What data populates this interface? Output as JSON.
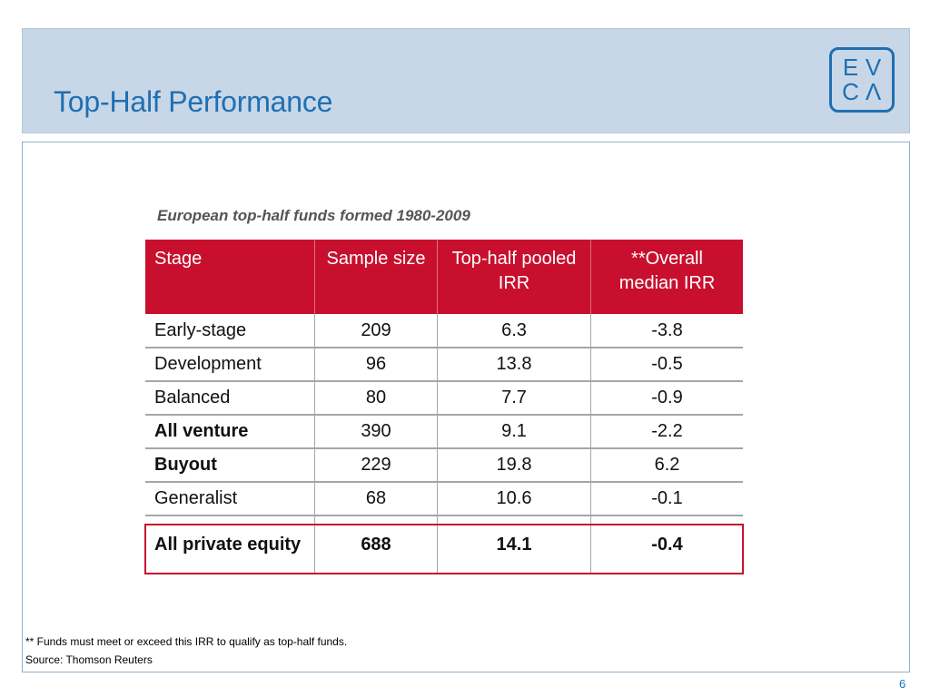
{
  "slide": {
    "title": "Top-Half Performance",
    "logo": {
      "letters": [
        "E",
        "V",
        "C",
        "Λ"
      ]
    },
    "subtitle": "European top-half funds formed 1980-2009",
    "page_number": "6"
  },
  "table": {
    "headers": [
      "Stage",
      "Sample size",
      "Top-half pooled IRR",
      "**Overall median IRR"
    ],
    "rows": [
      {
        "stage": "Early-stage",
        "sample": "209",
        "top_half": "6.3",
        "median": "-3.8"
      },
      {
        "stage": "Development",
        "sample": "96",
        "top_half": "13.8",
        "median": "-0.5"
      },
      {
        "stage": "Balanced",
        "sample": "80",
        "top_half": "7.7",
        "median": "-0.9"
      },
      {
        "stage": "All venture",
        "sample": "390",
        "top_half": "9.1",
        "median": "-2.2"
      },
      {
        "stage": "Buyout",
        "sample": "229",
        "top_half": "19.8",
        "median": "6.2"
      },
      {
        "stage": "Generalist",
        "sample": "68",
        "top_half": "10.6",
        "median": "-0.1"
      }
    ],
    "total": {
      "stage": "All private equity",
      "sample": "688",
      "top_half": "14.1",
      "median": "-0.4"
    }
  },
  "colors": {
    "header_bg": "#c8102e",
    "title": "#1f6fb2",
    "banner": "#c8d7e7"
  },
  "footnotes": {
    "note": "** Funds must meet or exceed this IRR to qualify as top-half funds.",
    "source": "Source: Thomson Reuters"
  }
}
